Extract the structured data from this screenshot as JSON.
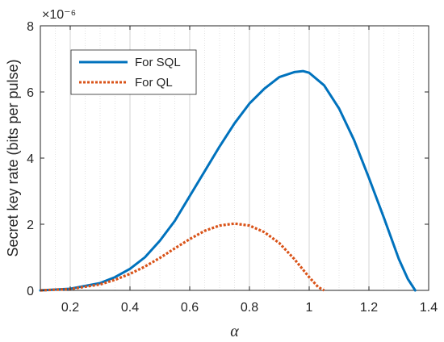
{
  "chart_data": {
    "type": "line",
    "xlabel": "α",
    "ylabel": "Secret key rate (bits per pulse)",
    "y_exponent_label": "×10⁻⁶",
    "xlim": [
      0.1,
      1.4
    ],
    "ylim": [
      0,
      8
    ],
    "x_ticks": [
      0.2,
      0.4,
      0.6,
      0.8,
      1,
      1.2,
      1.4
    ],
    "x_tick_labels": [
      "0.2",
      "0.4",
      "0.6",
      "0.8",
      "1",
      "1.2",
      "1.4"
    ],
    "y_ticks": [
      0,
      2,
      4,
      6,
      8
    ],
    "y_tick_labels": [
      "0",
      "2",
      "4",
      "6",
      "8"
    ],
    "grid": "vertical-dotted",
    "legend_position": "top-left",
    "series": [
      {
        "name": "For SQL",
        "color": "#0072BD",
        "style": "solid",
        "x": [
          0.1,
          0.2,
          0.3,
          0.35,
          0.4,
          0.45,
          0.5,
          0.55,
          0.6,
          0.65,
          0.7,
          0.75,
          0.8,
          0.85,
          0.9,
          0.95,
          0.98,
          1.0,
          1.05,
          1.1,
          1.15,
          1.2,
          1.25,
          1.3,
          1.33,
          1.355
        ],
        "values": [
          0.0,
          0.05,
          0.22,
          0.4,
          0.65,
          1.0,
          1.5,
          2.1,
          2.85,
          3.6,
          4.35,
          5.05,
          5.65,
          6.1,
          6.45,
          6.6,
          6.63,
          6.58,
          6.2,
          5.5,
          4.55,
          3.4,
          2.2,
          0.95,
          0.35,
          0.0
        ]
      },
      {
        "name": "For QL",
        "color": "#D95319",
        "style": "dotted",
        "x": [
          0.1,
          0.2,
          0.3,
          0.35,
          0.4,
          0.45,
          0.5,
          0.55,
          0.6,
          0.65,
          0.7,
          0.75,
          0.8,
          0.85,
          0.9,
          0.95,
          1.0,
          1.03,
          1.05
        ],
        "values": [
          0.0,
          0.04,
          0.18,
          0.32,
          0.5,
          0.72,
          0.98,
          1.27,
          1.55,
          1.8,
          1.96,
          2.02,
          1.96,
          1.76,
          1.43,
          0.95,
          0.4,
          0.1,
          0.0
        ]
      }
    ]
  }
}
